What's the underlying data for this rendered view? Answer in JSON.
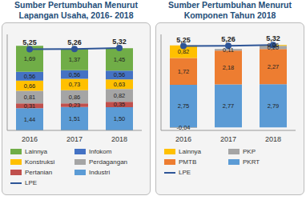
{
  "chart_data": [
    {
      "type": "bar",
      "title": "Sumber Pertumbuhan Menurut Lapangan Usaha, 2016- 2018",
      "categories": [
        "2016",
        "2017",
        "2018"
      ],
      "stacked": true,
      "data_labels": true,
      "tick_labels": "x",
      "ylim": [
        0,
        6.2
      ],
      "series": [
        {
          "name": "Industri",
          "type": "bar",
          "color": "#5b9bd5",
          "values": [
            1.44,
            1.51,
            1.5
          ],
          "value_labels": [
            "1,44",
            "1,51",
            "1,50"
          ]
        },
        {
          "name": "Pertanian",
          "type": "bar",
          "color": "#c0504d",
          "values": [
            0.31,
            0.23,
            0.35
          ],
          "value_labels": [
            "0,31",
            "0,23",
            "0,35"
          ]
        },
        {
          "name": "Perdagangan",
          "type": "bar",
          "color": "#a5a5a5",
          "values": [
            0.81,
            0.86,
            0.82
          ],
          "value_labels": [
            "0,81",
            "0,86",
            "0,82"
          ]
        },
        {
          "name": "Konstruksi",
          "type": "bar",
          "color": "#ffc000",
          "values": [
            0.66,
            0.73,
            0.63
          ],
          "value_labels": [
            "0,66",
            "0,73",
            "0,63"
          ]
        },
        {
          "name": "Infokom",
          "type": "bar",
          "color": "#4472c4",
          "values": [
            0.56,
            0.56,
            0.56
          ],
          "value_labels": [
            "0,56",
            "0,56",
            "0,56"
          ]
        },
        {
          "name": "Lainnya",
          "type": "bar",
          "color": "#70ad47",
          "values": [
            1.69,
            1.37,
            1.45
          ],
          "value_labels": [
            "1,69",
            "1,37",
            "1,45"
          ]
        },
        {
          "name": "LPE",
          "type": "line",
          "marker": "circle",
          "color": "#2e5597",
          "values": [
            5.25,
            5.26,
            5.32
          ],
          "value_labels": [
            "5,25",
            "5,26",
            "5,32"
          ]
        }
      ]
    },
    {
      "type": "bar",
      "title": "Sumber Pertumbuhan Menurut Komponen Tahun 2018",
      "categories": [
        "2016",
        "2017",
        "2018"
      ],
      "stacked": true,
      "data_labels": true,
      "tick_labels": "x",
      "ylim": [
        -0.2,
        6.0
      ],
      "series": [
        {
          "name": "PKRT",
          "type": "bar",
          "color": "#5b9bd5",
          "values": [
            2.75,
            2.77,
            2.79
          ],
          "value_labels": [
            "2,75",
            "2,77",
            "2,79"
          ]
        },
        {
          "name": "PMTB",
          "type": "bar",
          "color": "#ed7d31",
          "values": [
            1.72,
            2.18,
            2.27
          ],
          "value_labels": [
            "1,72",
            "2,18",
            "2,27"
          ]
        },
        {
          "name": "PKP",
          "type": "bar",
          "color": "#a5a5a5",
          "values": [
            -0.04,
            0.11,
            0.2
          ],
          "value_labels": [
            "-0,04",
            "0,11",
            "0,20"
          ]
        },
        {
          "name": "Lainnya",
          "type": "bar",
          "color": "#ffc000",
          "values": [
            0.82,
            null,
            0.06
          ],
          "value_labels": [
            "0,82",
            null,
            "0,06"
          ]
        },
        {
          "name": "LPE",
          "type": "line",
          "marker": "circle",
          "color": "#2e5597",
          "values": [
            5.25,
            5.26,
            5.32
          ],
          "value_labels": [
            "5,25",
            "5,26",
            "5,32"
          ]
        }
      ]
    }
  ]
}
